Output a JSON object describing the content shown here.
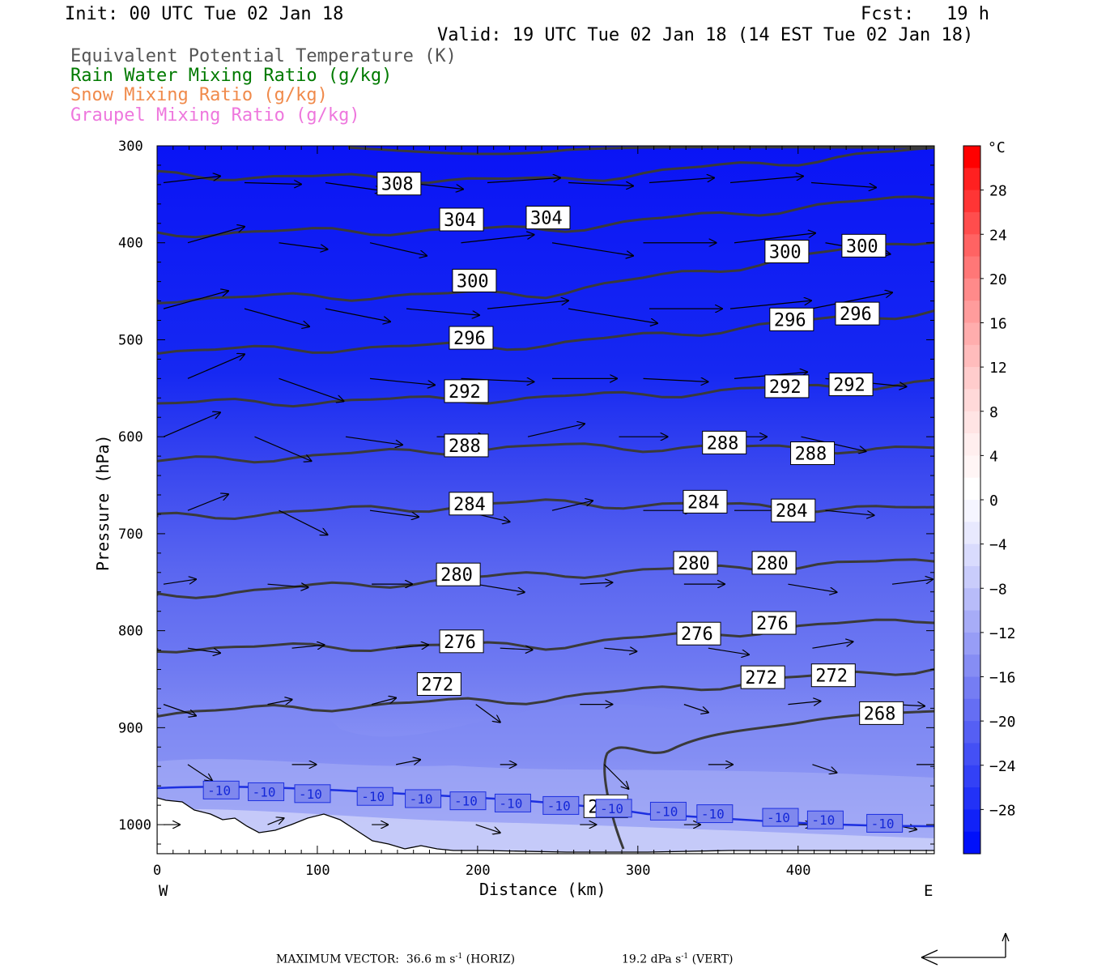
{
  "header": {
    "init": "Init: 00 UTC Tue 02 Jan 18",
    "fcst": "Fcst:   19 h",
    "valid": "Valid: 19 UTC Tue 02 Jan 18 (14 EST Tue 02 Jan 18)"
  },
  "legend": [
    {
      "label": "Equivalent Potential Temperature (K)",
      "color": "#555555"
    },
    {
      "label": "Rain Water Mixing Ratio (g/kg)",
      "color": "#007a00"
    },
    {
      "label": "Snow Mixing Ratio (g/kg)",
      "color": "#f08a4b"
    },
    {
      "label": "Graupel Mixing Ratio (g/kg)",
      "color": "#ee77dd"
    }
  ],
  "chart_data": {
    "type": "cross-section",
    "xlabel": "Distance (km)",
    "ylabel": "Pressure (hPa)",
    "x_range": [
      0,
      485
    ],
    "y_range": [
      1030,
      300
    ],
    "x_ticks": [
      "0",
      "100",
      "200",
      "300",
      "400"
    ],
    "y_ticks": [
      "300",
      "400",
      "500",
      "600",
      "700",
      "800",
      "900",
      "1000"
    ],
    "x_end_labels": {
      "left": "W",
      "right": "E"
    },
    "theta_e_labels": [
      {
        "text": "308",
        "x": 151,
        "p": 339
      },
      {
        "text": "304",
        "x": 190,
        "p": 376
      },
      {
        "text": "304",
        "x": 244,
        "p": 374
      },
      {
        "text": "300",
        "x": 198,
        "p": 439
      },
      {
        "text": "300",
        "x": 393,
        "p": 409
      },
      {
        "text": "300",
        "x": 441,
        "p": 403
      },
      {
        "text": "296",
        "x": 196,
        "p": 498
      },
      {
        "text": "296",
        "x": 396,
        "p": 479
      },
      {
        "text": "296",
        "x": 437,
        "p": 473
      },
      {
        "text": "292",
        "x": 193,
        "p": 553
      },
      {
        "text": "292",
        "x": 393,
        "p": 548
      },
      {
        "text": "292",
        "x": 433,
        "p": 546
      },
      {
        "text": "288",
        "x": 193,
        "p": 609
      },
      {
        "text": "288",
        "x": 354,
        "p": 606
      },
      {
        "text": "288",
        "x": 409,
        "p": 617
      },
      {
        "text": "284",
        "x": 196,
        "p": 669
      },
      {
        "text": "284",
        "x": 342,
        "p": 667
      },
      {
        "text": "284",
        "x": 397,
        "p": 676
      },
      {
        "text": "280",
        "x": 188,
        "p": 742
      },
      {
        "text": "280",
        "x": 336,
        "p": 730
      },
      {
        "text": "280",
        "x": 385,
        "p": 730
      },
      {
        "text": "276",
        "x": 190,
        "p": 811
      },
      {
        "text": "276",
        "x": 338,
        "p": 803
      },
      {
        "text": "276",
        "x": 385,
        "p": 792
      },
      {
        "text": "272",
        "x": 176,
        "p": 855
      },
      {
        "text": "272",
        "x": 378,
        "p": 848
      },
      {
        "text": "272",
        "x": 422,
        "p": 846
      },
      {
        "text": "268",
        "x": 280,
        "p": 981
      },
      {
        "text": "268",
        "x": 452,
        "p": 885
      }
    ],
    "isotherm_labels": [
      {
        "text": "-10",
        "x": 40
      },
      {
        "text": "-10",
        "x": 68
      },
      {
        "text": "-10",
        "x": 97
      },
      {
        "text": "-10",
        "x": 136
      },
      {
        "text": "-10",
        "x": 166
      },
      {
        "text": "-10",
        "x": 194
      },
      {
        "text": "-10",
        "x": 222
      },
      {
        "text": "-10",
        "x": 252
      },
      {
        "text": "-10",
        "x": 285
      },
      {
        "text": "-10",
        "x": 319
      },
      {
        "text": "-10",
        "x": 348
      },
      {
        "text": "-10",
        "x": 389
      },
      {
        "text": "-10",
        "x": 417
      },
      {
        "text": "-10",
        "x": 454
      }
    ],
    "colorbar": {
      "unit": "°C",
      "labels": [
        "28",
        "24",
        "20",
        "16",
        "12",
        "8",
        "4",
        "0",
        "−4",
        "−8",
        "−12",
        "−16",
        "−20",
        "−24",
        "−28"
      ]
    }
  },
  "footer": {
    "max_vector_text": "MAXIMUM VECTOR:  36.6 m s",
    "horiz_text": " (HORIZ)",
    "vert_text": "19.2 dPa s",
    "vert_suffix": " (VERT)",
    "superscript": "-1"
  }
}
